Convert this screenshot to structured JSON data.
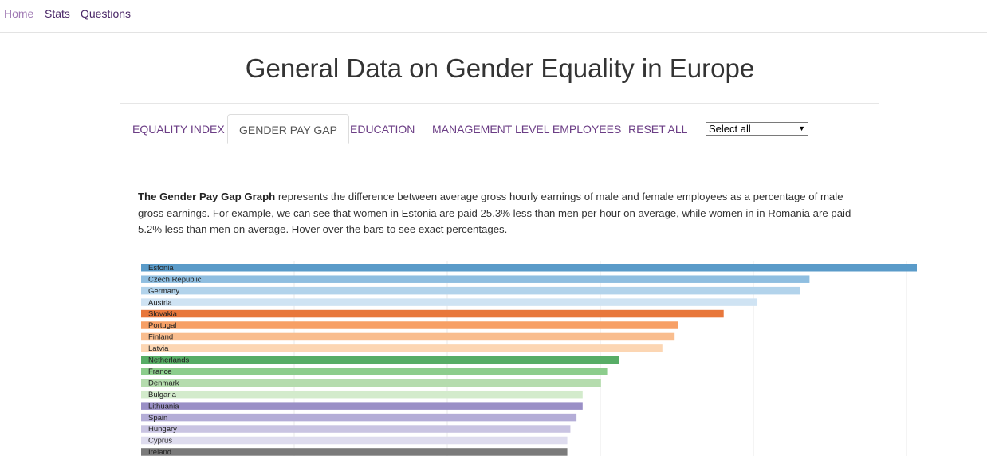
{
  "nav": {
    "home": "Home",
    "stats": "Stats",
    "questions": "Questions"
  },
  "page_title": "General Data on Gender Equality in Europe",
  "tabs": [
    {
      "label": "EQUALITY INDEX"
    },
    {
      "label": "GENDER PAY GAP",
      "active": true
    },
    {
      "label": "EDUCATION"
    },
    {
      "label": "MANAGEMENT LEVEL EMPLOYEES"
    },
    {
      "label": "RESET ALL"
    }
  ],
  "select": {
    "value": "Select all"
  },
  "description": {
    "bold": "The Gender Pay Gap Graph",
    "text": " represents the difference between average gross hourly earnings of male and female employees as a percentage of male gross earnings. For example, we can see that women in Estonia are paid 25.3% less than men per hour on average, while women in in Romania are paid 5.2% less than men on average. Hover over the bars to see exact percentages."
  },
  "chart_data": {
    "type": "bar",
    "orientation": "horizontal",
    "title": "",
    "xlabel": "",
    "ylabel": "",
    "xlim": [
      0,
      25.3
    ],
    "grid": true,
    "categories": [
      "Estonia",
      "Czech Republic",
      "Germany",
      "Austria",
      "Slovakia",
      "Portugal",
      "Finland",
      "Latvia",
      "Netherlands",
      "France",
      "Denmark",
      "Bulgaria",
      "Lithuania",
      "Spain",
      "Hungary",
      "Cyprus",
      "Ireland"
    ],
    "values": [
      25.3,
      21.8,
      21.5,
      20.1,
      19.0,
      17.5,
      17.4,
      17.0,
      15.6,
      15.2,
      15.0,
      14.4,
      14.4,
      14.2,
      14.0,
      13.9,
      13.9
    ],
    "colors": [
      "#5a9bc9",
      "#8fbee0",
      "#b2d3eb",
      "#cfe3f3",
      "#e8773b",
      "#f7a066",
      "#f9bd8e",
      "#fcd6b3",
      "#57ad66",
      "#8ccd8c",
      "#b5dcae",
      "#d3ebcc",
      "#9a8fc6",
      "#b4add7",
      "#c9c4e2",
      "#dedcee",
      "#7b7b7b"
    ]
  }
}
